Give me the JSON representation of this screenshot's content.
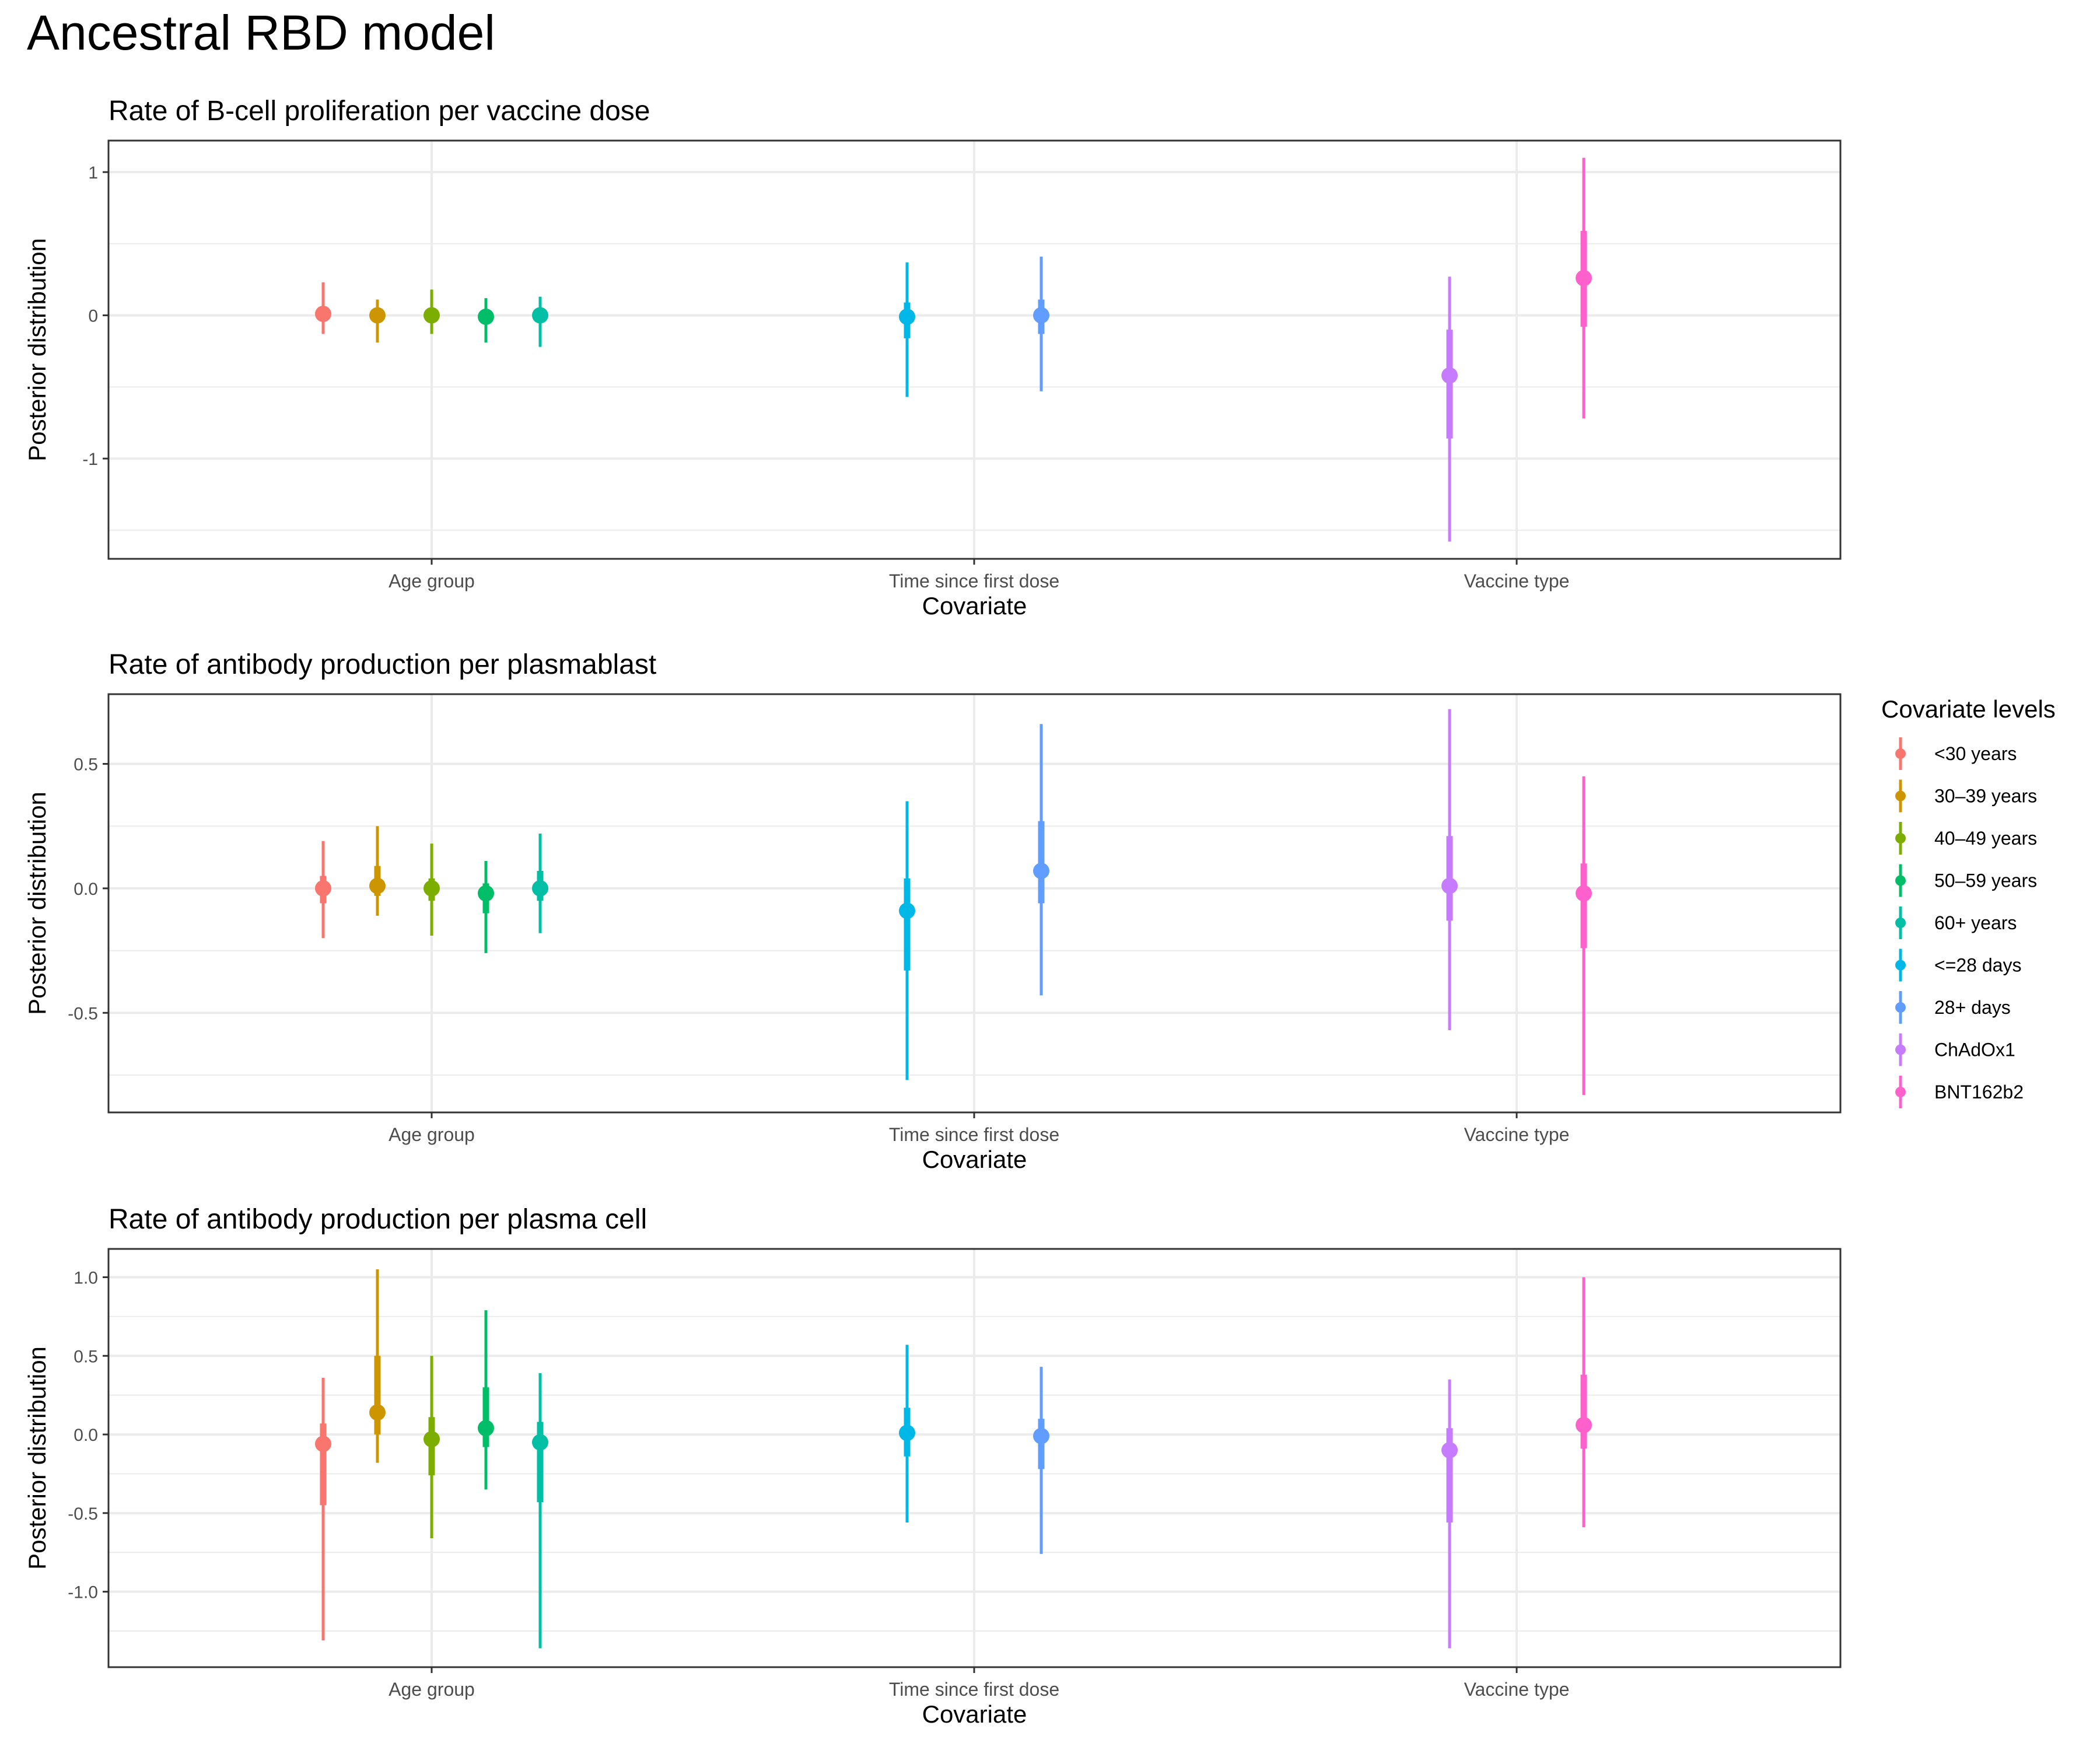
{
  "page_title": "Ancestral RBD model",
  "legend": {
    "title": "Covariate levels",
    "levels": [
      {
        "label": "<30 years",
        "color": "#F8766D"
      },
      {
        "label": "30–39 years",
        "color": "#CD9600"
      },
      {
        "label": "40–49 years",
        "color": "#7CAE00"
      },
      {
        "label": "50–59 years",
        "color": "#00BE67"
      },
      {
        "label": "60+ years",
        "color": "#00BFA4"
      },
      {
        "label": "<=28 days",
        "color": "#00B8E7"
      },
      {
        "label": "28+ days",
        "color": "#619CFF"
      },
      {
        "label": "ChAdOx1",
        "color": "#C77CFF"
      },
      {
        "label": "BNT162b2",
        "color": "#FF61CC"
      }
    ]
  },
  "chart_data": [
    {
      "type": "pointrange",
      "title": "Rate of B-cell proliferation per vaccine dose",
      "xlabel": "Covariate",
      "ylabel": "Posterior distribution",
      "categories": [
        "Age group",
        "Time since first dose",
        "Vaccine type"
      ],
      "ylim": [
        -1.7,
        1.22
      ],
      "yticks": [
        {
          "value": -1,
          "label": "-1"
        },
        {
          "value": 0,
          "label": "0"
        },
        {
          "value": 1,
          "label": "1"
        }
      ],
      "minor_breaks": [
        -1.5,
        -0.5,
        0.5
      ],
      "grid": true,
      "series": [
        {
          "level": 0,
          "category": "Age group",
          "median": 0.01,
          "inner": [
            -0.03,
            0.05
          ],
          "outer": [
            -0.13,
            0.23
          ]
        },
        {
          "level": 1,
          "category": "Age group",
          "median": 0.0,
          "inner": [
            -0.05,
            0.03
          ],
          "outer": [
            -0.19,
            0.11
          ]
        },
        {
          "level": 2,
          "category": "Age group",
          "median": 0.0,
          "inner": [
            -0.03,
            0.05
          ],
          "outer": [
            -0.13,
            0.18
          ]
        },
        {
          "level": 3,
          "category": "Age group",
          "median": -0.01,
          "inner": [
            -0.06,
            0.03
          ],
          "outer": [
            -0.19,
            0.12
          ]
        },
        {
          "level": 4,
          "category": "Age group",
          "median": 0.0,
          "inner": [
            -0.05,
            0.04
          ],
          "outer": [
            -0.22,
            0.13
          ]
        },
        {
          "level": 5,
          "category": "Time since first dose",
          "median": -0.01,
          "inner": [
            -0.16,
            0.09
          ],
          "outer": [
            -0.57,
            0.37
          ]
        },
        {
          "level": 6,
          "category": "Time since first dose",
          "median": 0.0,
          "inner": [
            -0.13,
            0.11
          ],
          "outer": [
            -0.53,
            0.41
          ]
        },
        {
          "level": 7,
          "category": "Vaccine type",
          "median": -0.42,
          "inner": [
            -0.86,
            -0.1
          ],
          "outer": [
            -1.58,
            0.27
          ]
        },
        {
          "level": 8,
          "category": "Vaccine type",
          "median": 0.26,
          "inner": [
            -0.08,
            0.59
          ],
          "outer": [
            -0.72,
            1.1
          ]
        }
      ]
    },
    {
      "type": "pointrange",
      "title": "Rate of antibody production per plasmablast",
      "xlabel": "Covariate",
      "ylabel": "Posterior distribution",
      "categories": [
        "Age group",
        "Time since first dose",
        "Vaccine type"
      ],
      "ylim": [
        -0.9,
        0.78
      ],
      "yticks": [
        {
          "value": -0.5,
          "label": "-0.5"
        },
        {
          "value": 0,
          "label": "0.0"
        },
        {
          "value": 0.5,
          "label": "0.5"
        }
      ],
      "minor_breaks": [
        -0.75,
        -0.25,
        0.25
      ],
      "grid": true,
      "series": [
        {
          "level": 0,
          "category": "Age group",
          "median": 0.0,
          "inner": [
            -0.06,
            0.05
          ],
          "outer": [
            -0.2,
            0.19
          ]
        },
        {
          "level": 1,
          "category": "Age group",
          "median": 0.01,
          "inner": [
            -0.03,
            0.09
          ],
          "outer": [
            -0.11,
            0.25
          ]
        },
        {
          "level": 2,
          "category": "Age group",
          "median": 0.0,
          "inner": [
            -0.05,
            0.04
          ],
          "outer": [
            -0.19,
            0.18
          ]
        },
        {
          "level": 3,
          "category": "Age group",
          "median": -0.02,
          "inner": [
            -0.1,
            0.02
          ],
          "outer": [
            -0.26,
            0.11
          ]
        },
        {
          "level": 4,
          "category": "Age group",
          "median": 0.0,
          "inner": [
            -0.05,
            0.07
          ],
          "outer": [
            -0.18,
            0.22
          ]
        },
        {
          "level": 5,
          "category": "Time since first dose",
          "median": -0.09,
          "inner": [
            -0.33,
            0.04
          ],
          "outer": [
            -0.77,
            0.35
          ]
        },
        {
          "level": 6,
          "category": "Time since first dose",
          "median": 0.07,
          "inner": [
            -0.06,
            0.27
          ],
          "outer": [
            -0.43,
            0.66
          ]
        },
        {
          "level": 7,
          "category": "Vaccine type",
          "median": 0.01,
          "inner": [
            -0.13,
            0.21
          ],
          "outer": [
            -0.57,
            0.72
          ]
        },
        {
          "level": 8,
          "category": "Vaccine type",
          "median": -0.02,
          "inner": [
            -0.24,
            0.1
          ],
          "outer": [
            -0.83,
            0.45
          ]
        }
      ]
    },
    {
      "type": "pointrange",
      "title": "Rate of antibody production per plasma cell",
      "xlabel": "Covariate",
      "ylabel": "Posterior distribution",
      "categories": [
        "Age group",
        "Time since first dose",
        "Vaccine type"
      ],
      "ylim": [
        -1.48,
        1.18
      ],
      "yticks": [
        {
          "value": -1.0,
          "label": "-1.0"
        },
        {
          "value": -0.5,
          "label": "-0.5"
        },
        {
          "value": 0,
          "label": "0.0"
        },
        {
          "value": 0.5,
          "label": "0.5"
        },
        {
          "value": 1.0,
          "label": "1.0"
        }
      ],
      "minor_breaks": [
        -1.25,
        -0.75,
        -0.25,
        0.25,
        0.75
      ],
      "grid": true,
      "series": [
        {
          "level": 0,
          "category": "Age group",
          "median": -0.06,
          "inner": [
            -0.45,
            0.07
          ],
          "outer": [
            -1.31,
            0.36
          ]
        },
        {
          "level": 1,
          "category": "Age group",
          "median": 0.14,
          "inner": [
            0.0,
            0.5
          ],
          "outer": [
            -0.18,
            1.05
          ]
        },
        {
          "level": 2,
          "category": "Age group",
          "median": -0.03,
          "inner": [
            -0.26,
            0.11
          ],
          "outer": [
            -0.66,
            0.5
          ]
        },
        {
          "level": 3,
          "category": "Age group",
          "median": 0.04,
          "inner": [
            -0.08,
            0.3
          ],
          "outer": [
            -0.35,
            0.79
          ]
        },
        {
          "level": 4,
          "category": "Age group",
          "median": -0.05,
          "inner": [
            -0.43,
            0.08
          ],
          "outer": [
            -1.36,
            0.39
          ]
        },
        {
          "level": 5,
          "category": "Time since first dose",
          "median": 0.01,
          "inner": [
            -0.14,
            0.17
          ],
          "outer": [
            -0.56,
            0.57
          ]
        },
        {
          "level": 6,
          "category": "Time since first dose",
          "median": -0.01,
          "inner": [
            -0.22,
            0.1
          ],
          "outer": [
            -0.76,
            0.43
          ]
        },
        {
          "level": 7,
          "category": "Vaccine type",
          "median": -0.1,
          "inner": [
            -0.56,
            0.04
          ],
          "outer": [
            -1.36,
            0.35
          ]
        },
        {
          "level": 8,
          "category": "Vaccine type",
          "median": 0.06,
          "inner": [
            -0.09,
            0.38
          ],
          "outer": [
            -0.59,
            1.0
          ]
        }
      ]
    }
  ]
}
